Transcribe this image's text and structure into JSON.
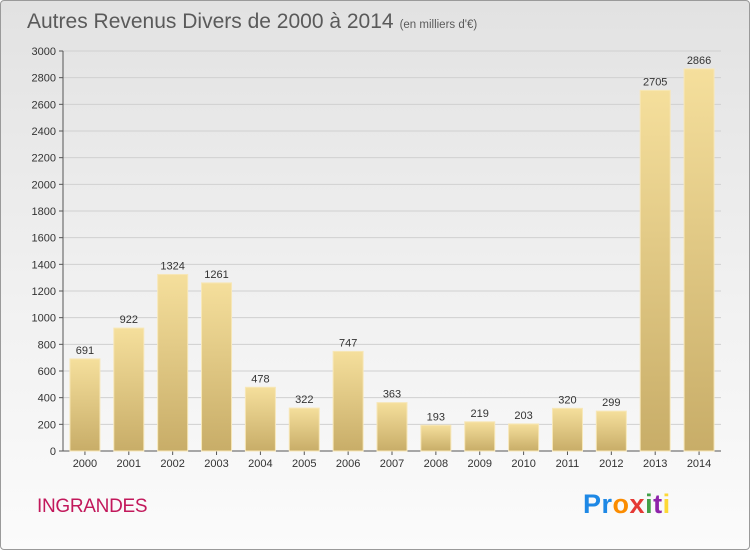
{
  "header": {
    "title": "Autres Revenus Divers de 2000 à 2014",
    "subtitle": "(en milliers d'€)"
  },
  "footer": {
    "commune": "INGRANDES",
    "brand": "Proxiti",
    "brand_letters": [
      {
        "ch": "P",
        "color": "#1e88e5"
      },
      {
        "ch": "r",
        "color": "#1e88e5"
      },
      {
        "ch": "o",
        "color": "#fb8c00"
      },
      {
        "ch": "x",
        "color": "#e53935"
      },
      {
        "ch": "i",
        "color": "#43a047"
      },
      {
        "ch": "t",
        "color": "#8e24aa"
      },
      {
        "ch": "i",
        "color": "#fdd835"
      }
    ]
  },
  "chart_data": {
    "type": "bar",
    "title": "Autres Revenus Divers de 2000 à 2014",
    "categories": [
      "2000",
      "2001",
      "2002",
      "2003",
      "2004",
      "2005",
      "2006",
      "2007",
      "2008",
      "2009",
      "2010",
      "2011",
      "2012",
      "2013",
      "2014"
    ],
    "values": [
      691,
      922,
      1324,
      1261,
      478,
      322,
      747,
      363,
      193,
      219,
      203,
      320,
      299,
      2705,
      2866
    ],
    "ylim": [
      0,
      3000
    ],
    "yticks": [
      0,
      200,
      400,
      600,
      800,
      1000,
      1200,
      1400,
      1600,
      1800,
      2000,
      2200,
      2400,
      2600,
      2800,
      3000
    ],
    "grid": true,
    "bar_color": "#e8cf8a"
  }
}
